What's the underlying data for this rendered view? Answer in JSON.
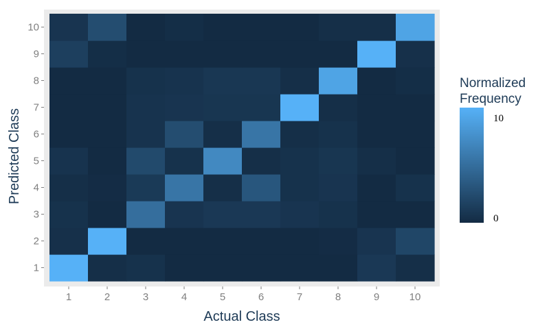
{
  "chart_data": {
    "type": "heatmap",
    "xlabel": "Actual Class",
    "ylabel": "Predicted Class",
    "x_categories": [
      "1",
      "2",
      "3",
      "4",
      "5",
      "6",
      "7",
      "8",
      "9",
      "10"
    ],
    "y_categories": [
      "1",
      "2",
      "3",
      "4",
      "5",
      "6",
      "7",
      "8",
      "9",
      "10"
    ],
    "values": [
      [
        10.0,
        0.3,
        0.5,
        0.0,
        0.0,
        0.0,
        0.0,
        0.0,
        1.0,
        0.3
      ],
      [
        0.4,
        10.0,
        0.0,
        0.0,
        0.0,
        0.0,
        0.0,
        0.1,
        0.7,
        2.0
      ],
      [
        0.5,
        0.0,
        5.0,
        0.7,
        1.0,
        1.0,
        0.7,
        0.5,
        0.0,
        0.0
      ],
      [
        0.3,
        0.1,
        1.1,
        5.5,
        0.3,
        3.2,
        0.5,
        0.7,
        0.0,
        0.5
      ],
      [
        0.6,
        0.0,
        2.3,
        0.5,
        7.0,
        0.3,
        0.5,
        0.8,
        0.3,
        0.0
      ],
      [
        0.0,
        0.0,
        0.6,
        2.5,
        0.3,
        5.5,
        0.3,
        0.5,
        0.0,
        0.0
      ],
      [
        0.0,
        0.0,
        0.6,
        0.7,
        0.8,
        0.8,
        10.0,
        0.3,
        0.0,
        0.0
      ],
      [
        0.0,
        0.0,
        0.5,
        0.6,
        0.9,
        0.9,
        0.3,
        9.0,
        0.0,
        0.2
      ],
      [
        1.5,
        0.2,
        0.0,
        0.0,
        0.0,
        0.0,
        0.0,
        0.0,
        10.0,
        0.4
      ],
      [
        0.7,
        2.5,
        0.0,
        0.2,
        0.0,
        0.0,
        0.0,
        0.3,
        0.3,
        9.0
      ]
    ],
    "value_range": [
      0,
      10
    ],
    "colormap": {
      "low": "#132b43",
      "high": "#56b1f7"
    },
    "legend": {
      "title_lines": [
        "Normalized",
        "Frequency"
      ],
      "tick_labels": [
        "10",
        "0"
      ],
      "tick_values": [
        10,
        0
      ],
      "placement": "right"
    },
    "panel_background": "#ebebeb",
    "grid": false
  }
}
